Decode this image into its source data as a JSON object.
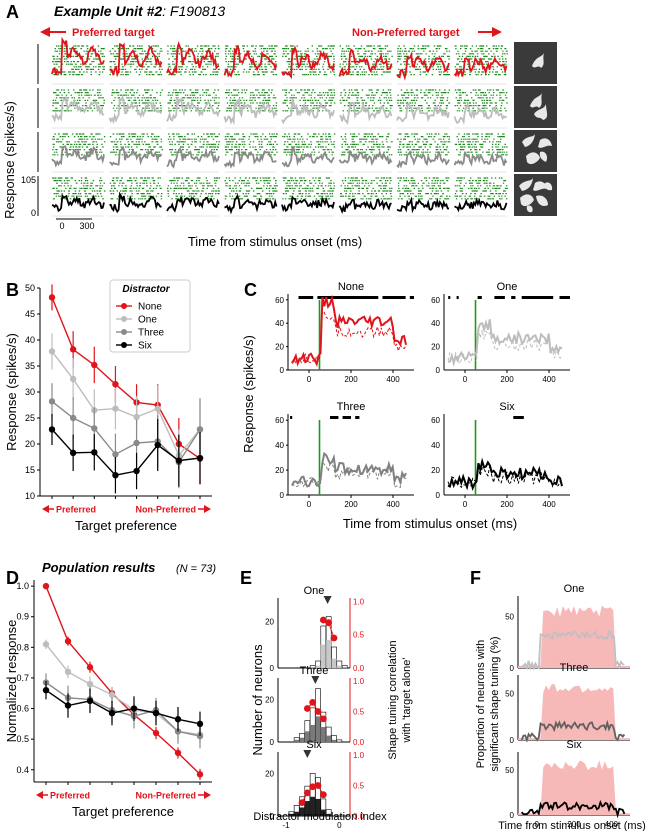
{
  "panel_a": {
    "label": "A",
    "title": "Example Unit #2",
    "unit_id": ": F190813",
    "preferred_label": "Preferred target",
    "nonpreferred_label": "Non-Preferred target",
    "ylabel": "Response (spikes/s)",
    "xlabel": "Time from stimulus onset (ms)",
    "ytick_max": "105",
    "ytick_min": "0",
    "xtick_0": "0",
    "xtick_300": "300",
    "rows": [
      "None",
      "One",
      "Three",
      "Six"
    ],
    "row_colors": [
      "#e0141b",
      "#bdbdbd",
      "#8a8a8a",
      "#000000"
    ],
    "raster_color": "#1a8a1a"
  },
  "chart_data": [
    {
      "panel": "B",
      "type": "line",
      "legend_title": "Distractor",
      "ylabel": "Response (spikes/s)",
      "xlabel": "Target preference",
      "x_left": "Preferred",
      "x_right": "Non-Preferred",
      "ylim": [
        10,
        50
      ],
      "yticks": [
        "10",
        "15",
        "20",
        "25",
        "30",
        "35",
        "40",
        "45",
        "50"
      ],
      "series": [
        {
          "name": "None",
          "color": "#e0141b",
          "values": [
            48.2,
            38.2,
            35.2,
            31.5,
            28.0,
            27.5,
            20.0,
            17.2
          ],
          "errors": [
            2.5,
            3.5,
            3.5,
            3.5,
            3.5,
            4.0,
            5.0,
            5.0
          ]
        },
        {
          "name": "One",
          "color": "#bdbdbd",
          "values": [
            37.8,
            32.5,
            26.5,
            26.8,
            25.2,
            26.8,
            17.8,
            22.8
          ],
          "errors": [
            3.5,
            4.0,
            4.0,
            4.0,
            4.0,
            4.5,
            5.0,
            6.0
          ]
        },
        {
          "name": "Three",
          "color": "#8a8a8a",
          "values": [
            28.2,
            25.0,
            23.0,
            18.0,
            20.2,
            20.5,
            16.5,
            22.8
          ],
          "errors": [
            3.5,
            4.0,
            4.0,
            4.0,
            4.5,
            5.0,
            5.0,
            6.0
          ]
        },
        {
          "name": "Six",
          "color": "#000000",
          "values": [
            22.8,
            18.3,
            18.4,
            14.0,
            14.8,
            19.8,
            16.8,
            17.3
          ],
          "errors": [
            3.0,
            3.5,
            3.5,
            3.5,
            3.5,
            5.0,
            5.0,
            5.0
          ]
        }
      ]
    },
    {
      "panel": "C",
      "type": "line",
      "ylabel": "Response (spikes/s)",
      "xlabel": "Time from stimulus onset (ms)",
      "xlim": [
        -100,
        500
      ],
      "ylim": [
        0,
        65
      ],
      "xticks": [
        "0",
        "200",
        "400"
      ],
      "yticks": [
        "0",
        "20",
        "40",
        "60"
      ],
      "subplots": [
        {
          "title": "None",
          "color": "#e0141b",
          "sig": [
            [
              -50,
              20
            ],
            [
              40,
              330
            ],
            [
              350,
              460
            ],
            [
              480,
              500
            ]
          ]
        },
        {
          "title": "One",
          "color": "#bdbdbd",
          "sig": [
            [
              -80,
              -70
            ],
            [
              -40,
              -30
            ],
            [
              60,
              80
            ],
            [
              140,
              190
            ],
            [
              220,
              240
            ],
            [
              270,
              420
            ],
            [
              450,
              500
            ]
          ]
        },
        {
          "title": "Three",
          "color": "#808080",
          "sig": [
            [
              -90,
              -80
            ],
            [
              100,
              140
            ],
            [
              160,
              200
            ],
            [
              220,
              240
            ]
          ]
        },
        {
          "title": "Six",
          "color": "#000000",
          "sig": [
            [
              230,
              280
            ]
          ]
        }
      ]
    },
    {
      "panel": "D",
      "type": "line",
      "title": "Population results",
      "n_label": "(N = 73)",
      "ylabel": "Normalized response",
      "xlabel": "Target preference",
      "x_left": "Preferred",
      "x_right": "Non-Preferred",
      "ylim": [
        0.36,
        1.02
      ],
      "yticks": [
        "0.4",
        "0.5",
        "0.6",
        "0.7",
        "0.8",
        "0.9",
        "1.0"
      ],
      "series": [
        {
          "name": "None",
          "color": "#e0141b",
          "values": [
            1.0,
            0.82,
            0.735,
            0.65,
            0.58,
            0.52,
            0.455,
            0.385
          ],
          "errors": [
            0.0,
            0.015,
            0.018,
            0.02,
            0.02,
            0.02,
            0.018,
            0.018
          ]
        },
        {
          "name": "One",
          "color": "#bdbdbd",
          "values": [
            0.81,
            0.72,
            0.68,
            0.645,
            0.595,
            0.585,
            0.525,
            0.515
          ],
          "errors": [
            0.015,
            0.02,
            0.025,
            0.025,
            0.025,
            0.025,
            0.025,
            0.025
          ]
        },
        {
          "name": "Three",
          "color": "#8a8a8a",
          "values": [
            0.685,
            0.635,
            0.63,
            0.595,
            0.575,
            0.595,
            0.525,
            0.51
          ],
          "errors": [
            0.03,
            0.04,
            0.04,
            0.04,
            0.04,
            0.04,
            0.04,
            0.04
          ]
        },
        {
          "name": "Six",
          "color": "#000000",
          "values": [
            0.66,
            0.61,
            0.625,
            0.585,
            0.6,
            0.585,
            0.565,
            0.55
          ],
          "errors": [
            0.03,
            0.04,
            0.04,
            0.04,
            0.04,
            0.04,
            0.04,
            0.04
          ]
        }
      ]
    },
    {
      "panel": "E",
      "type": "bar",
      "ylabel": "Number of neurons",
      "ylabel_right_1": "Shape tuning correlation",
      "ylabel_right_2": "with 'target alone'",
      "xlabel": "Distractor modulation index",
      "xticks": [
        "-1",
        "0"
      ],
      "yticks": [
        "0",
        "20"
      ],
      "rticks": [
        "0.0",
        "0.5",
        "1.0"
      ],
      "subplots": [
        {
          "title": "One",
          "fill": "#c8c8c8",
          "median": -0.22,
          "bins": [
            -0.5,
            -0.4,
            -0.3,
            -0.2,
            -0.1,
            0.0,
            0.1
          ],
          "counts": [
            1,
            3,
            18,
            22,
            9,
            3,
            1
          ],
          "sig": [
            0,
            1,
            10,
            12,
            4,
            1,
            0
          ],
          "corr": [
            [
              -0.3,
              0.72
            ],
            [
              -0.2,
              0.68
            ],
            [
              -0.1,
              0.45
            ]
          ]
        },
        {
          "title": "Three",
          "fill": "#7a7a7a",
          "median": -0.45,
          "bins": [
            -0.8,
            -0.7,
            -0.6,
            -0.5,
            -0.4,
            -0.3,
            -0.2,
            -0.1,
            0.0
          ],
          "counts": [
            2,
            4,
            10,
            16,
            25,
            14,
            7,
            3,
            1
          ],
          "sig": [
            1,
            2,
            5,
            8,
            12,
            7,
            3,
            1,
            0
          ],
          "corr": [
            [
              -0.6,
              0.55
            ],
            [
              -0.5,
              0.65
            ],
            [
              -0.4,
              0.5
            ],
            [
              -0.3,
              0.38
            ]
          ]
        },
        {
          "title": "Six",
          "fill": "#222222",
          "median": -0.6,
          "bins": [
            -0.9,
            -0.8,
            -0.7,
            -0.6,
            -0.5,
            -0.4,
            -0.3,
            -0.2
          ],
          "counts": [
            2,
            5,
            9,
            14,
            20,
            18,
            8,
            3
          ],
          "sig": [
            1,
            2,
            4,
            7,
            9,
            8,
            3,
            1
          ],
          "corr": [
            [
              -0.7,
              0.22
            ],
            [
              -0.6,
              0.38
            ],
            [
              -0.5,
              0.48
            ],
            [
              -0.4,
              0.5
            ],
            [
              -0.3,
              0.35
            ]
          ]
        }
      ]
    },
    {
      "panel": "F",
      "type": "area",
      "ylabel_1": "Proportion of neurons with",
      "ylabel_2": "significant shape tuning (%)",
      "xlabel": "Time from stimulus onset (ms)",
      "xlim": [
        -100,
        500
      ],
      "ylim": [
        0,
        70
      ],
      "xticks": [
        "0",
        "200",
        "400"
      ],
      "yticks": [
        "0",
        "50"
      ],
      "band_color": "#f7b8b8",
      "subplots": [
        {
          "title": "One",
          "color": "#c0c0c0",
          "level": 32
        },
        {
          "title": "Three",
          "color": "#606060",
          "level": 15
        },
        {
          "title": "Six",
          "color": "#000000",
          "level": 10
        }
      ]
    }
  ]
}
